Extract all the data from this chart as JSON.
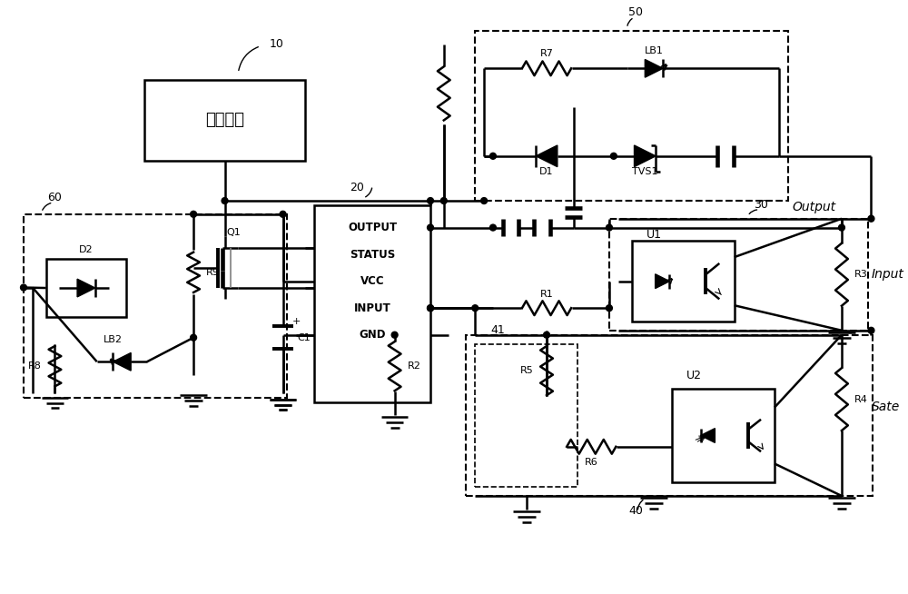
{
  "bg_color": "#ffffff",
  "line_color": "#000000",
  "dashed_color": "#000000",
  "fig_width": 10.0,
  "fig_height": 6.54,
  "title": "",
  "labels": {
    "block_10": "驱动电源",
    "block_20_lines": [
      "OUTPUT",
      "STATUS",
      "VCC",
      "INPUT",
      "GND"
    ],
    "label_10": "10",
    "label_20": "20",
    "label_30": "30",
    "label_40": "40",
    "label_41": "41",
    "label_50": "50",
    "label_60": "60",
    "Q1": "Q1",
    "D1": "D1",
    "D2": "D2",
    "R1": "R1",
    "R2": "R2",
    "R3": "R3",
    "R4": "R4",
    "R5": "R5",
    "R6": "R6",
    "R7": "R7",
    "R8": "R8",
    "R9": "R9",
    "LB1": "LB1",
    "LB2": "LB2",
    "TVS1": "TVS1",
    "C1": "C1",
    "U1": "U1",
    "U2": "U2",
    "Output": "Output",
    "Input": "Input",
    "Sate": "Sate"
  }
}
